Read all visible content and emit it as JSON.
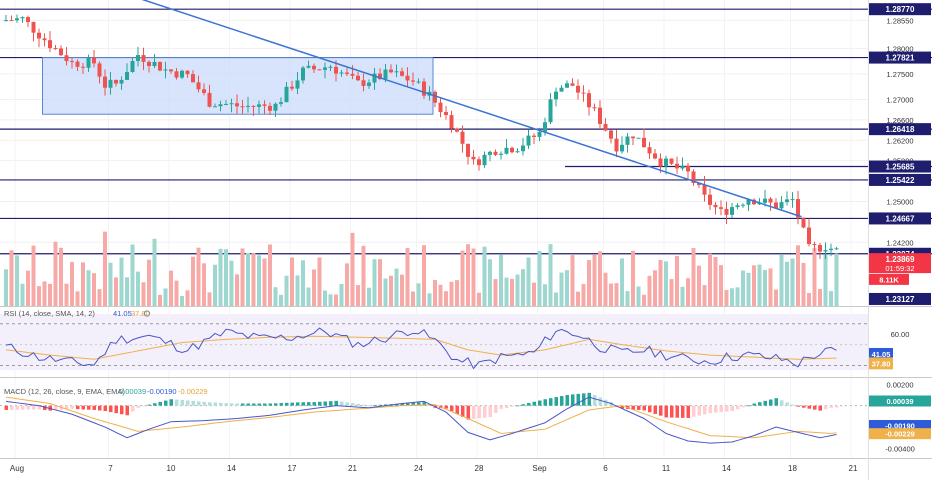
{
  "chart_data": {
    "type": "candlestick",
    "symbol_pair": "GBPUSD",
    "x_ticks": [
      "Aug",
      "7",
      "10",
      "14",
      "17",
      "21",
      "24",
      "28",
      "Sep",
      "6",
      "11",
      "14",
      "18",
      "21"
    ],
    "x_tick_index": [
      2,
      19,
      30,
      41,
      52,
      63,
      75,
      86,
      97,
      109,
      120,
      131,
      143,
      154
    ],
    "candle_count": 152,
    "price_axis": {
      "ticks": [
        1.2855,
        1.28,
        1.275,
        1.27,
        1.266,
        1.262,
        1.258,
        1.25,
        1.242
      ],
      "tick_labels": [
        "1.28550",
        "1.28000",
        "1.27500",
        "1.27000",
        "1.26600",
        "1.26200",
        "1.25800",
        "1.25000",
        "1.24200"
      ],
      "range": [
        1.2295,
        1.2895
      ]
    },
    "horizontal_levels": [
      {
        "value": 1.2877,
        "label": "1.28770"
      },
      {
        "value": 1.27821,
        "label": "1.27821"
      },
      {
        "value": 1.26418,
        "label": "1.26418"
      },
      {
        "value": 1.25685,
        "label": "1.25685"
      },
      {
        "value": 1.25422,
        "label": "1.25422"
      },
      {
        "value": 1.24667,
        "label": "1.24667"
      },
      {
        "value": 1.23974,
        "label": "1.23974"
      }
    ],
    "price_badges": [
      {
        "label": "1.23869",
        "sub": "01:59:32",
        "value": 1.23869,
        "color": "#f23645"
      },
      {
        "label": "8.11K",
        "value": 1.2358,
        "color": "#f23645"
      },
      {
        "label": "1.23127",
        "value": 1.23127,
        "color": "#1e1d6e"
      }
    ],
    "ohlc": {
      "anchors": [
        [
          0,
          1.2855
        ],
        [
          4,
          1.2858
        ],
        [
          9,
          1.2808
        ],
        [
          13,
          1.2772
        ],
        [
          17,
          1.2772
        ],
        [
          19,
          1.2728
        ],
        [
          21,
          1.273
        ],
        [
          25,
          1.2788
        ],
        [
          30,
          1.2758
        ],
        [
          34,
          1.2747
        ],
        [
          38,
          1.2695
        ],
        [
          44,
          1.2686
        ],
        [
          50,
          1.2688
        ],
        [
          55,
          1.2755
        ],
        [
          60,
          1.2766
        ],
        [
          65,
          1.2731
        ],
        [
          71,
          1.2752
        ],
        [
          75,
          1.2736
        ],
        [
          78,
          1.2708
        ],
        [
          82,
          1.2654
        ],
        [
          86,
          1.2575
        ],
        [
          90,
          1.2602
        ],
        [
          94,
          1.2607
        ],
        [
          98,
          1.2634
        ],
        [
          101,
          1.2724
        ],
        [
          104,
          1.2728
        ],
        [
          108,
          1.2676
        ],
        [
          112,
          1.2609
        ],
        [
          115,
          1.2632
        ],
        [
          120,
          1.2579
        ],
        [
          125,
          1.2555
        ],
        [
          128,
          1.2506
        ],
        [
          131,
          1.2478
        ],
        [
          136,
          1.2507
        ],
        [
          141,
          1.2492
        ],
        [
          144,
          1.2503
        ],
        [
          147,
          1.2406
        ],
        [
          150,
          1.2413
        ],
        [
          152,
          1.2403
        ],
        [
          155,
          1.2389
        ]
      ],
      "seed": 7
    },
    "range_box": {
      "from_index": 7,
      "to_index": 78,
      "top": 1.27821,
      "bottom": 1.2671
    },
    "trendline": {
      "from": [
        17,
        1.2925
      ],
      "to": [
        145,
        1.247
      ]
    },
    "volume": {
      "axis_badge": "8.11K"
    },
    "rsi": {
      "header": "RSI (14, close, SMA, 14, 2)",
      "value_rsi": "41.05",
      "value_sma": "37.80",
      "axis_tick_labels": [
        "60.00"
      ],
      "range": [
        20,
        85
      ],
      "bands": [
        70,
        30
      ],
      "anchors": [
        [
          0,
          48
        ],
        [
          6,
          38
        ],
        [
          12,
          33
        ],
        [
          16,
          31
        ],
        [
          20,
          55
        ],
        [
          26,
          58
        ],
        [
          33,
          45
        ],
        [
          40,
          62
        ],
        [
          46,
          56
        ],
        [
          52,
          57
        ],
        [
          58,
          63
        ],
        [
          64,
          50
        ],
        [
          70,
          58
        ],
        [
          74,
          65
        ],
        [
          78,
          54
        ],
        [
          82,
          35
        ],
        [
          86,
          30
        ],
        [
          90,
          38
        ],
        [
          96,
          42
        ],
        [
          100,
          64
        ],
        [
          104,
          60
        ],
        [
          108,
          48
        ],
        [
          112,
          42
        ],
        [
          116,
          45
        ],
        [
          120,
          40
        ],
        [
          124,
          36
        ],
        [
          128,
          34
        ],
        [
          131,
          38
        ],
        [
          135,
          40
        ],
        [
          141,
          36
        ],
        [
          144,
          32
        ],
        [
          147,
          40
        ],
        [
          150,
          44
        ],
        [
          152,
          41
        ],
        [
          155,
          41
        ]
      ],
      "sma_anchors": [
        [
          0,
          45
        ],
        [
          8,
          40
        ],
        [
          16,
          36
        ],
        [
          24,
          44
        ],
        [
          32,
          52
        ],
        [
          40,
          55
        ],
        [
          48,
          57
        ],
        [
          56,
          58
        ],
        [
          64,
          57
        ],
        [
          72,
          56
        ],
        [
          78,
          55
        ],
        [
          84,
          45
        ],
        [
          90,
          40
        ],
        [
          98,
          45
        ],
        [
          106,
          55
        ],
        [
          112,
          50
        ],
        [
          120,
          44
        ],
        [
          128,
          40
        ],
        [
          136,
          38
        ],
        [
          144,
          36
        ],
        [
          150,
          37
        ],
        [
          155,
          37.8
        ]
      ]
    },
    "macd": {
      "header": "MACD (12, 26, close, 9, EMA, EMA)",
      "value_hist": "0.00039",
      "value_macd": "-0.00190",
      "value_signal": "-0.00229",
      "axis_tick_labels": [
        "0.00200",
        "-0.00400"
      ],
      "range": [
        -0.0048,
        0.0024
      ],
      "macd_anchors": [
        [
          0,
          0.0004
        ],
        [
          6,
          0.0
        ],
        [
          12,
          -0.0008
        ],
        [
          18,
          -0.002
        ],
        [
          22,
          -0.003
        ],
        [
          26,
          -0.0022
        ],
        [
          30,
          -0.0015
        ],
        [
          36,
          -0.0014
        ],
        [
          42,
          -0.0012
        ],
        [
          48,
          -0.0009
        ],
        [
          54,
          -0.0004
        ],
        [
          60,
          0.0
        ],
        [
          66,
          -0.0002
        ],
        [
          72,
          0.0002
        ],
        [
          76,
          0.0004
        ],
        [
          80,
          -0.0006
        ],
        [
          84,
          -0.0025
        ],
        [
          88,
          -0.0032
        ],
        [
          92,
          -0.0026
        ],
        [
          98,
          -0.0016
        ],
        [
          102,
          -0.0003
        ],
        [
          106,
          0.0008
        ],
        [
          110,
          0.0002
        ],
        [
          116,
          -0.0012
        ],
        [
          120,
          -0.0026
        ],
        [
          124,
          -0.0033
        ],
        [
          128,
          -0.0035
        ],
        [
          132,
          -0.0034
        ],
        [
          136,
          -0.0028
        ],
        [
          140,
          -0.002
        ],
        [
          144,
          -0.0025
        ],
        [
          148,
          -0.003
        ],
        [
          152,
          -0.0026
        ],
        [
          155,
          -0.0019
        ]
      ],
      "signal_anchors": [
        [
          0,
          0.0008
        ],
        [
          8,
          0.0002
        ],
        [
          16,
          -0.0012
        ],
        [
          24,
          -0.0024
        ],
        [
          32,
          -0.002
        ],
        [
          40,
          -0.0015
        ],
        [
          48,
          -0.0011
        ],
        [
          56,
          -0.0006
        ],
        [
          64,
          -0.0003
        ],
        [
          72,
          0.0
        ],
        [
          78,
          0.0001
        ],
        [
          84,
          -0.0012
        ],
        [
          90,
          -0.0026
        ],
        [
          98,
          -0.0022
        ],
        [
          106,
          -0.0004
        ],
        [
          112,
          0.0
        ],
        [
          120,
          -0.0015
        ],
        [
          128,
          -0.0028
        ],
        [
          136,
          -0.003
        ],
        [
          144,
          -0.0024
        ],
        [
          150,
          -0.0026
        ],
        [
          155,
          -0.00229
        ]
      ]
    }
  }
}
